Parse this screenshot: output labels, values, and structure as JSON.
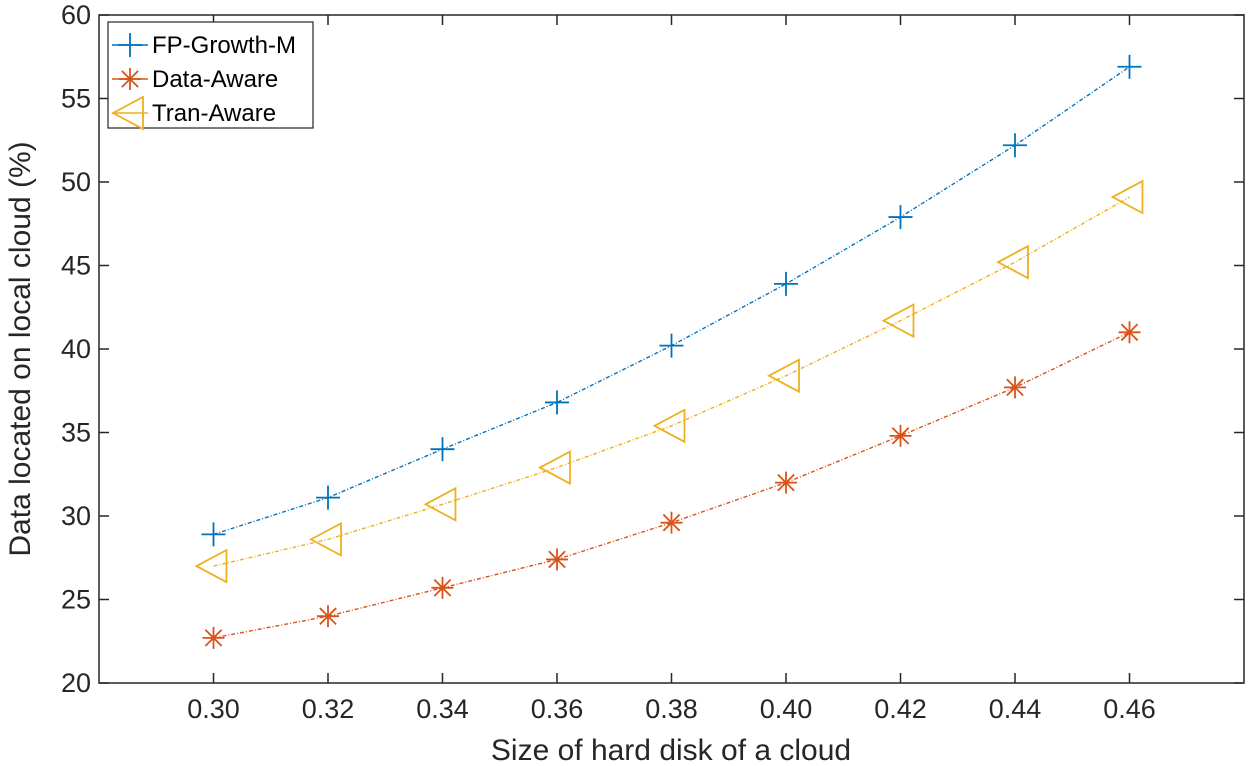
{
  "chart_data": {
    "type": "line",
    "title": "",
    "xlabel": "Size of hard disk of a cloud",
    "ylabel": "Data located on local cloud (%)",
    "x": [
      0.3,
      0.32,
      0.34,
      0.36,
      0.38,
      0.4,
      0.42,
      0.44,
      0.46
    ],
    "x_tick_labels": [
      "0.30",
      "0.32",
      "0.34",
      "0.36",
      "0.38",
      "0.40",
      "0.42",
      "0.44",
      "0.46"
    ],
    "y_ticks": [
      20,
      25,
      30,
      35,
      40,
      45,
      50,
      55,
      60
    ],
    "y_tick_labels": [
      "20",
      "25",
      "30",
      "35",
      "40",
      "45",
      "50",
      "55",
      "60"
    ],
    "xlim": [
      0.28,
      0.48
    ],
    "ylim": [
      20,
      60
    ],
    "grid": false,
    "legend_position": "top-left",
    "series": [
      {
        "name": "FP-Growth-M",
        "color": "#0072BD",
        "marker": "plus",
        "values": [
          28.9,
          31.1,
          34.0,
          36.8,
          40.2,
          43.9,
          47.9,
          52.2,
          56.9
        ]
      },
      {
        "name": "Data-Aware",
        "color": "#D95319",
        "marker": "asterisk",
        "values": [
          22.7,
          24.0,
          25.7,
          27.4,
          29.6,
          32.0,
          34.8,
          37.7,
          41.0
        ]
      },
      {
        "name": "Tran-Aware",
        "color": "#EDB120",
        "marker": "triangle-left",
        "values": [
          27.0,
          28.6,
          30.7,
          32.9,
          35.4,
          38.4,
          41.7,
          45.2,
          49.1
        ]
      }
    ]
  }
}
